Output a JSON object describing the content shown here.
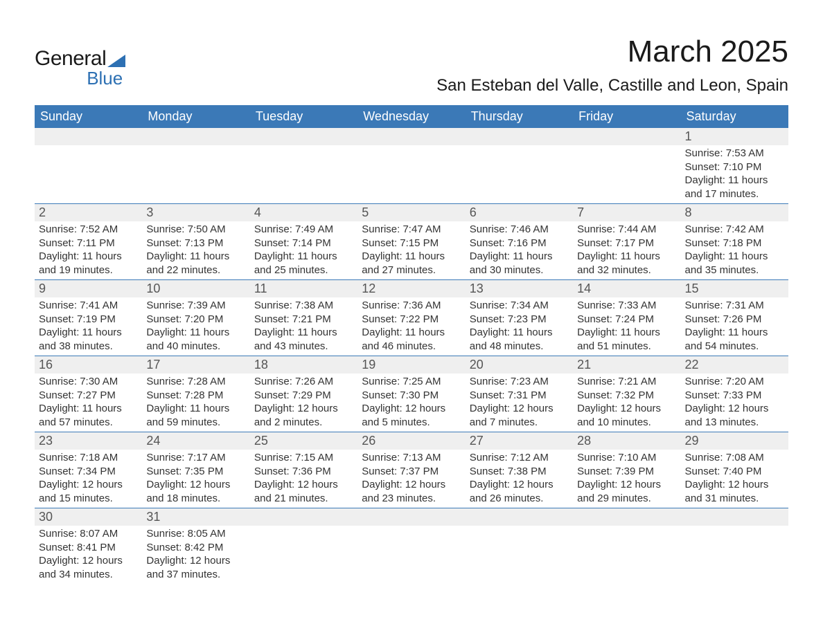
{
  "logo": {
    "general": "General",
    "blue": "Blue"
  },
  "title": "March 2025",
  "location": "San Esteban del Valle, Castille and Leon, Spain",
  "colors": {
    "header_bg": "#3b79b7",
    "header_text": "#ffffff",
    "daynum_bg": "#efefef",
    "border": "#3b79b7",
    "logo_blue": "#2d70b3",
    "text": "#333333"
  },
  "weekdays": [
    "Sunday",
    "Monday",
    "Tuesday",
    "Wednesday",
    "Thursday",
    "Friday",
    "Saturday"
  ],
  "weeks": [
    [
      null,
      null,
      null,
      null,
      null,
      null,
      {
        "n": "1",
        "sunrise": "7:53 AM",
        "sunset": "7:10 PM",
        "daylight": "11 hours and 17 minutes."
      }
    ],
    [
      {
        "n": "2",
        "sunrise": "7:52 AM",
        "sunset": "7:11 PM",
        "daylight": "11 hours and 19 minutes."
      },
      {
        "n": "3",
        "sunrise": "7:50 AM",
        "sunset": "7:13 PM",
        "daylight": "11 hours and 22 minutes."
      },
      {
        "n": "4",
        "sunrise": "7:49 AM",
        "sunset": "7:14 PM",
        "daylight": "11 hours and 25 minutes."
      },
      {
        "n": "5",
        "sunrise": "7:47 AM",
        "sunset": "7:15 PM",
        "daylight": "11 hours and 27 minutes."
      },
      {
        "n": "6",
        "sunrise": "7:46 AM",
        "sunset": "7:16 PM",
        "daylight": "11 hours and 30 minutes."
      },
      {
        "n": "7",
        "sunrise": "7:44 AM",
        "sunset": "7:17 PM",
        "daylight": "11 hours and 32 minutes."
      },
      {
        "n": "8",
        "sunrise": "7:42 AM",
        "sunset": "7:18 PM",
        "daylight": "11 hours and 35 minutes."
      }
    ],
    [
      {
        "n": "9",
        "sunrise": "7:41 AM",
        "sunset": "7:19 PM",
        "daylight": "11 hours and 38 minutes."
      },
      {
        "n": "10",
        "sunrise": "7:39 AM",
        "sunset": "7:20 PM",
        "daylight": "11 hours and 40 minutes."
      },
      {
        "n": "11",
        "sunrise": "7:38 AM",
        "sunset": "7:21 PM",
        "daylight": "11 hours and 43 minutes."
      },
      {
        "n": "12",
        "sunrise": "7:36 AM",
        "sunset": "7:22 PM",
        "daylight": "11 hours and 46 minutes."
      },
      {
        "n": "13",
        "sunrise": "7:34 AM",
        "sunset": "7:23 PM",
        "daylight": "11 hours and 48 minutes."
      },
      {
        "n": "14",
        "sunrise": "7:33 AM",
        "sunset": "7:24 PM",
        "daylight": "11 hours and 51 minutes."
      },
      {
        "n": "15",
        "sunrise": "7:31 AM",
        "sunset": "7:26 PM",
        "daylight": "11 hours and 54 minutes."
      }
    ],
    [
      {
        "n": "16",
        "sunrise": "7:30 AM",
        "sunset": "7:27 PM",
        "daylight": "11 hours and 57 minutes."
      },
      {
        "n": "17",
        "sunrise": "7:28 AM",
        "sunset": "7:28 PM",
        "daylight": "11 hours and 59 minutes."
      },
      {
        "n": "18",
        "sunrise": "7:26 AM",
        "sunset": "7:29 PM",
        "daylight": "12 hours and 2 minutes."
      },
      {
        "n": "19",
        "sunrise": "7:25 AM",
        "sunset": "7:30 PM",
        "daylight": "12 hours and 5 minutes."
      },
      {
        "n": "20",
        "sunrise": "7:23 AM",
        "sunset": "7:31 PM",
        "daylight": "12 hours and 7 minutes."
      },
      {
        "n": "21",
        "sunrise": "7:21 AM",
        "sunset": "7:32 PM",
        "daylight": "12 hours and 10 minutes."
      },
      {
        "n": "22",
        "sunrise": "7:20 AM",
        "sunset": "7:33 PM",
        "daylight": "12 hours and 13 minutes."
      }
    ],
    [
      {
        "n": "23",
        "sunrise": "7:18 AM",
        "sunset": "7:34 PM",
        "daylight": "12 hours and 15 minutes."
      },
      {
        "n": "24",
        "sunrise": "7:17 AM",
        "sunset": "7:35 PM",
        "daylight": "12 hours and 18 minutes."
      },
      {
        "n": "25",
        "sunrise": "7:15 AM",
        "sunset": "7:36 PM",
        "daylight": "12 hours and 21 minutes."
      },
      {
        "n": "26",
        "sunrise": "7:13 AM",
        "sunset": "7:37 PM",
        "daylight": "12 hours and 23 minutes."
      },
      {
        "n": "27",
        "sunrise": "7:12 AM",
        "sunset": "7:38 PM",
        "daylight": "12 hours and 26 minutes."
      },
      {
        "n": "28",
        "sunrise": "7:10 AM",
        "sunset": "7:39 PM",
        "daylight": "12 hours and 29 minutes."
      },
      {
        "n": "29",
        "sunrise": "7:08 AM",
        "sunset": "7:40 PM",
        "daylight": "12 hours and 31 minutes."
      }
    ],
    [
      {
        "n": "30",
        "sunrise": "8:07 AM",
        "sunset": "8:41 PM",
        "daylight": "12 hours and 34 minutes."
      },
      {
        "n": "31",
        "sunrise": "8:05 AM",
        "sunset": "8:42 PM",
        "daylight": "12 hours and 37 minutes."
      },
      null,
      null,
      null,
      null,
      null
    ]
  ],
  "labels": {
    "sunrise": "Sunrise: ",
    "sunset": "Sunset: ",
    "daylight": "Daylight: "
  }
}
